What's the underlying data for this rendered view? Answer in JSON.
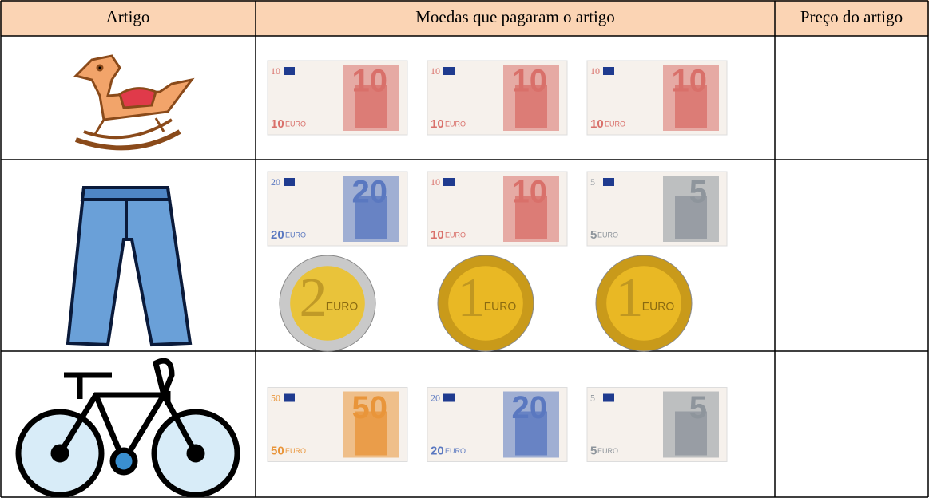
{
  "table": {
    "headers": [
      "Artigo",
      "Moedas que pagaram o artigo",
      "Preço do artigo"
    ],
    "currency_label": "EURO",
    "rows": [
      {
        "money": [
          {
            "kind": "note",
            "denomination": "10",
            "color": "#d9706a"
          },
          {
            "kind": "note",
            "denomination": "10",
            "color": "#d9706a"
          },
          {
            "kind": "note",
            "denomination": "10",
            "color": "#d9706a"
          }
        ]
      },
      {
        "money": [
          {
            "kind": "note",
            "denomination": "20",
            "color": "#5a78c0"
          },
          {
            "kind": "note",
            "denomination": "10",
            "color": "#d9706a"
          },
          {
            "kind": "note",
            "denomination": "5",
            "color": "#8e959c"
          },
          {
            "kind": "coin",
            "denomination": "2",
            "color": "#c9c9c9"
          },
          {
            "kind": "coin",
            "denomination": "1",
            "color": "#e9b824"
          },
          {
            "kind": "coin",
            "denomination": "1",
            "color": "#e9b824"
          }
        ]
      },
      {
        "money": [
          {
            "kind": "note",
            "denomination": "50",
            "color": "#e9953a"
          },
          {
            "kind": "note",
            "denomination": "20",
            "color": "#5a78c0"
          },
          {
            "kind": "note",
            "denomination": "5",
            "color": "#8e959c"
          }
        ]
      }
    ]
  }
}
